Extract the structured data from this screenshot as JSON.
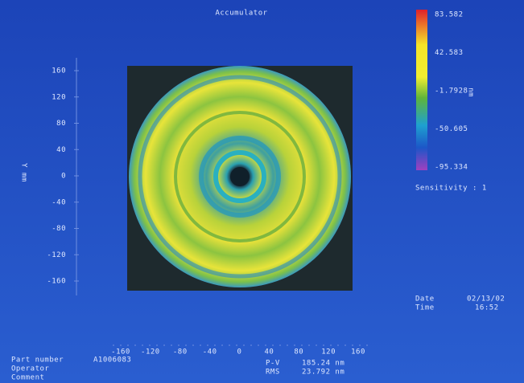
{
  "header": {
    "title": "Accumulator"
  },
  "colorbar": {
    "labels": [
      "83.582",
      "42.583",
      "-1.7928",
      "-50.605",
      "-95.334"
    ],
    "unit": "nm"
  },
  "sensitivity": "Sensitivity : 1",
  "y_axis": {
    "label": "Y mm",
    "ticks": [
      "160",
      "120",
      "80",
      "40",
      "0",
      "-40",
      "-80",
      "-120",
      "-160"
    ]
  },
  "x_axis": {
    "ticks": [
      "-160",
      "-120",
      "-80",
      "-40",
      "0",
      "40",
      "80",
      "120",
      "160"
    ]
  },
  "datetime": {
    "date_label": "Date",
    "date": "02/13/02",
    "time_label": "Time",
    "time": "16:52"
  },
  "footer": {
    "part_number_label": "Part number",
    "part_number": "A1006083",
    "operator_label": "Operator",
    "comment_label": "Comment",
    "pv_label": "P-V",
    "pv": "185.24 nm",
    "rms_label": "RMS",
    "rms": "23.792 nm"
  }
}
